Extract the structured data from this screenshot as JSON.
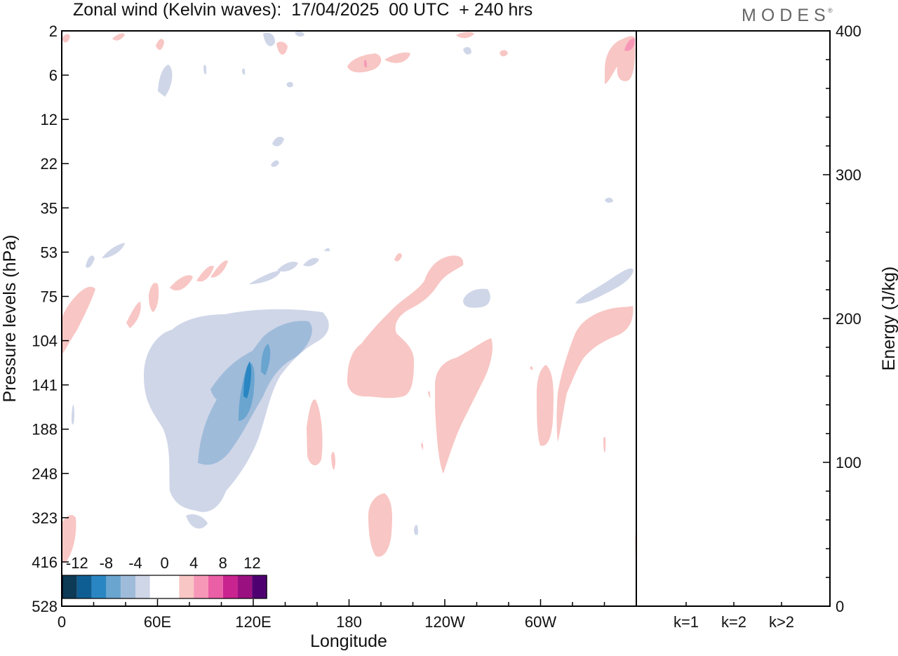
{
  "title": "Zonal wind (Kelvin waves):  17/04/2025  00 UTC  + 240 hrs",
  "brand": "MODES",
  "brand_mark": "®",
  "chart_data": [
    {
      "type": "heatmap",
      "title": "Zonal wind (Kelvin waves):  17/04/2025  00 UTC  + 240 hrs",
      "xlabel": "Longitude",
      "ylabel": "Pressure levels (hPa)",
      "x_ticks": [
        "0",
        "60E",
        "120E",
        "180",
        "120W",
        "60W"
      ],
      "x_tick_degrees": [
        0,
        60,
        120,
        180,
        240,
        300
      ],
      "xlim": [
        0,
        360
      ],
      "y_ticks": [
        "2",
        "6",
        "12",
        "22",
        "35",
        "53",
        "75",
        "104",
        "141",
        "188",
        "248",
        "323",
        "416",
        "528"
      ],
      "y_scale": "log-pressure",
      "legend": {
        "placement": "bottom-left",
        "labels": [
          "-12",
          "-8",
          "-4",
          "0",
          "4",
          "8",
          "12"
        ],
        "colors": [
          "#0d3a55",
          "#0f5e93",
          "#2a86c2",
          "#6aa5d0",
          "#9fbbda",
          "#cfd6e8",
          "#ffffff",
          "#ffffff",
          "#f8c6c4",
          "#f797b8",
          "#ea5fa5",
          "#c9238f",
          "#9b1080",
          "#4f0070"
        ]
      },
      "regions": [
        {
          "name": "easterly-upper-troposphere",
          "sign": "negative",
          "lon": [
            50,
            170
          ],
          "pressure": [
            95,
            330
          ],
          "max_magnitude": -12
        },
        {
          "name": "westerly-central-pacific",
          "sign": "positive",
          "lon": [
            170,
            215
          ],
          "pressure": [
            80,
            175
          ],
          "max_magnitude": 4
        },
        {
          "name": "westerly-east-pacific",
          "sign": "positive",
          "lon": [
            230,
            265
          ],
          "pressure": [
            105,
            260
          ],
          "max_magnitude": 4
        },
        {
          "name": "westerly-western-hemisphere",
          "sign": "positive",
          "lon": [
            295,
            358
          ],
          "pressure": [
            85,
            185
          ],
          "max_magnitude": 4
        },
        {
          "name": "easterly-upper-western-hemisphere",
          "sign": "negative",
          "lon": [
            320,
            358
          ],
          "pressure": [
            60,
            80
          ],
          "max_magnitude": -4
        },
        {
          "name": "westerly-stratosphere-pacific",
          "sign": "positive",
          "lon": [
            180,
            215
          ],
          "pressure": [
            2,
            6
          ],
          "max_magnitude": 8
        },
        {
          "name": "westerly-stratosphere-dateline",
          "sign": "positive",
          "lon": [
            340,
            360
          ],
          "pressure": [
            2,
            8
          ],
          "max_magnitude": 8
        },
        {
          "name": "westerly-lower-troposphere",
          "sign": "positive",
          "lon": [
            190,
            205
          ],
          "pressure": [
            300,
            420
          ],
          "max_magnitude": 4
        }
      ]
    },
    {
      "type": "bar",
      "title": "",
      "xlabel": "",
      "ylabel": "Energy (J/kg)",
      "categories": [
        "k=1",
        "k=2",
        "k>2"
      ],
      "values": [
        0.5,
        0.5,
        0.5
      ],
      "ylim": [
        0,
        400
      ],
      "y_ticks": [
        "0",
        "100",
        "200",
        "300",
        "400"
      ]
    }
  ]
}
